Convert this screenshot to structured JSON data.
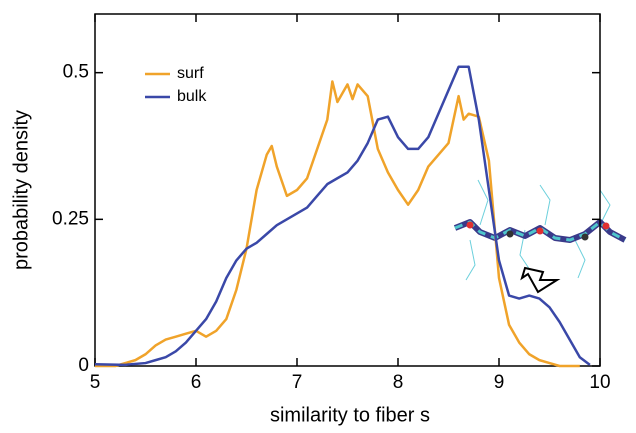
{
  "chart_data": {
    "type": "line",
    "xlabel": "similarity to fiber s",
    "ylabel": "probability density",
    "xlim": [
      5,
      10
    ],
    "ylim": [
      0,
      0.6
    ],
    "xticks": [
      5,
      6,
      7,
      8,
      9,
      10
    ],
    "yticks": [
      0,
      0.25,
      0.5
    ],
    "legend": "upper left",
    "series": [
      {
        "name": "surf",
        "color": "#f0a32a",
        "x": [
          5.0,
          5.1,
          5.2,
          5.3,
          5.4,
          5.5,
          5.6,
          5.7,
          5.8,
          5.9,
          6.0,
          6.1,
          6.2,
          6.3,
          6.4,
          6.5,
          6.6,
          6.7,
          6.75,
          6.8,
          6.9,
          7.0,
          7.1,
          7.2,
          7.3,
          7.35,
          7.4,
          7.5,
          7.55,
          7.6,
          7.7,
          7.8,
          7.9,
          8.0,
          8.1,
          8.2,
          8.3,
          8.4,
          8.5,
          8.6,
          8.65,
          8.7,
          8.8,
          8.9,
          9.0,
          9.1,
          9.2,
          9.3,
          9.4,
          9.5,
          9.6,
          9.8
        ],
        "values": [
          0,
          0,
          0,
          0.005,
          0.01,
          0.02,
          0.035,
          0.045,
          0.05,
          0.055,
          0.06,
          0.05,
          0.06,
          0.08,
          0.13,
          0.2,
          0.3,
          0.36,
          0.375,
          0.34,
          0.29,
          0.3,
          0.32,
          0.37,
          0.42,
          0.485,
          0.45,
          0.48,
          0.455,
          0.48,
          0.46,
          0.37,
          0.33,
          0.3,
          0.275,
          0.3,
          0.34,
          0.36,
          0.38,
          0.46,
          0.42,
          0.43,
          0.425,
          0.35,
          0.15,
          0.07,
          0.04,
          0.02,
          0.01,
          0.005,
          0,
          0
        ]
      },
      {
        "name": "bulk",
        "color": "#3a48a8",
        "x": [
          5.0,
          5.3,
          5.5,
          5.6,
          5.7,
          5.8,
          5.9,
          6.0,
          6.1,
          6.2,
          6.3,
          6.4,
          6.5,
          6.6,
          6.7,
          6.8,
          6.9,
          7.0,
          7.1,
          7.2,
          7.3,
          7.4,
          7.5,
          7.6,
          7.7,
          7.8,
          7.9,
          8.0,
          8.1,
          8.2,
          8.3,
          8.4,
          8.5,
          8.6,
          8.7,
          8.8,
          8.9,
          9.0,
          9.1,
          9.2,
          9.3,
          9.4,
          9.5,
          9.6,
          9.7,
          9.8,
          9.9
        ],
        "values": [
          0.003,
          0.002,
          0.005,
          0.01,
          0.015,
          0.025,
          0.04,
          0.06,
          0.08,
          0.11,
          0.15,
          0.18,
          0.2,
          0.21,
          0.225,
          0.24,
          0.25,
          0.26,
          0.27,
          0.29,
          0.31,
          0.32,
          0.33,
          0.35,
          0.38,
          0.42,
          0.425,
          0.39,
          0.37,
          0.37,
          0.39,
          0.43,
          0.47,
          0.51,
          0.51,
          0.42,
          0.3,
          0.18,
          0.12,
          0.115,
          0.12,
          0.115,
          0.1,
          0.075,
          0.045,
          0.015,
          0.002
        ]
      }
    ]
  }
}
